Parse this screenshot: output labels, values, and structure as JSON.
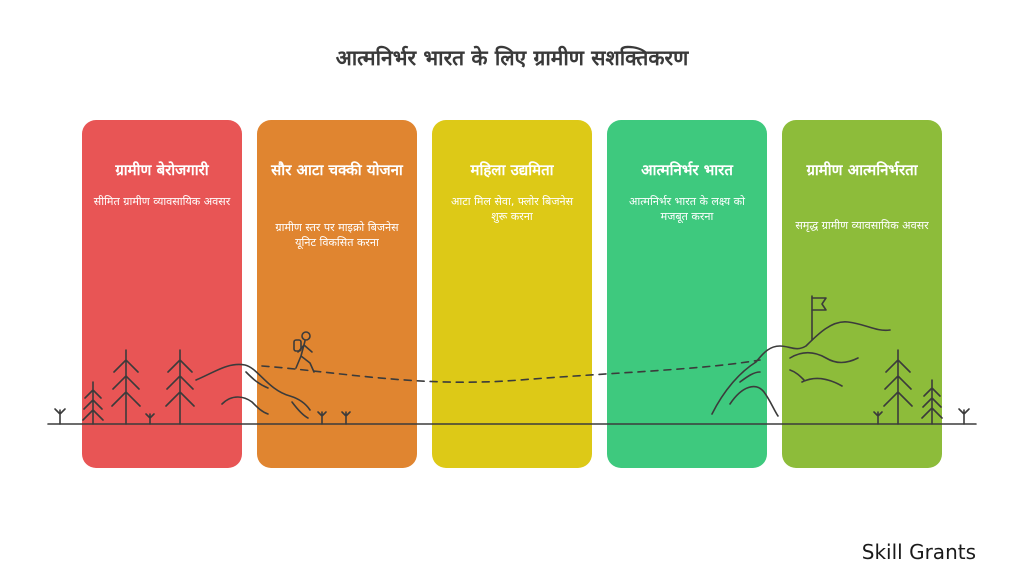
{
  "title": "आत्मनिर्भर भारत के लिए ग्रामीण सशक्तिकरण",
  "stages": [
    {
      "heading": "ग्रामीण बेरोजगारी",
      "description": "सीमित ग्रामीण व्यावसायिक अवसर",
      "color": "#e85555"
    },
    {
      "heading": "सौर आटा चक्की योजना",
      "description": "ग्रामीण स्तर पर माइक्रो बिजनेस यूनिट विकसित करना",
      "color": "#e08530"
    },
    {
      "heading": "महिला उद्यमिता",
      "description": "आटा मिल सेवा, फ्लोर बिजनेस शुरू करना",
      "color": "#ddc917"
    },
    {
      "heading": "आत्मनिर्भर भारत",
      "description": "आत्मनिर्भर भारत के लक्ष्य को मजबूत करना",
      "color": "#3ec97e"
    },
    {
      "heading": "ग्रामीण आत्मनिर्भरता",
      "description": "समृद्ध ग्रामीण व्यावसायिक अवसर",
      "color": "#8dbc3a"
    }
  ],
  "brand": "Skill Grants",
  "icons": [
    "pine-tree-icon",
    "hiker-icon",
    "mountain-icon",
    "flag-icon",
    "grass-tuft-icon"
  ],
  "line_color": "#3b3b3b"
}
